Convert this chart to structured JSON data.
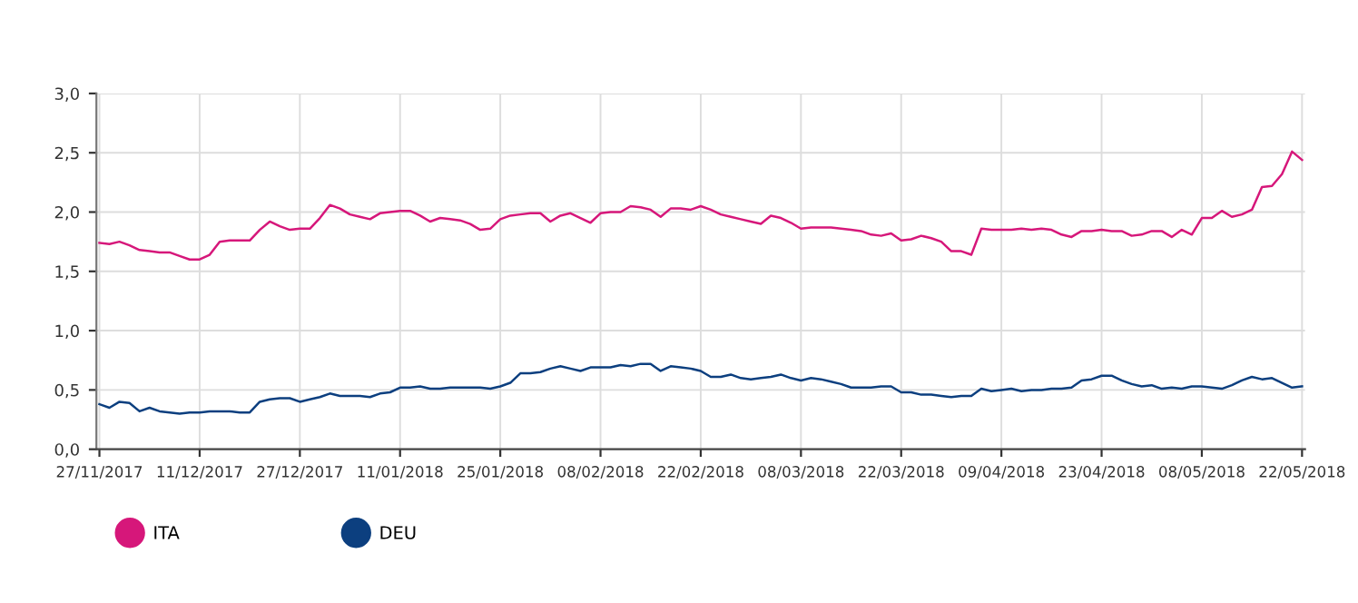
{
  "chart_data": {
    "type": "line",
    "categories": [
      "27/11/2017",
      null,
      null,
      null,
      null,
      null,
      null,
      null,
      null,
      null,
      "11/12/2017",
      null,
      null,
      null,
      null,
      null,
      null,
      null,
      null,
      null,
      "27/12/2017",
      null,
      null,
      null,
      null,
      null,
      null,
      null,
      null,
      null,
      "11/01/2018",
      null,
      null,
      null,
      null,
      null,
      null,
      null,
      null,
      null,
      "25/01/2018",
      null,
      null,
      null,
      null,
      null,
      null,
      null,
      null,
      null,
      "08/02/2018",
      null,
      null,
      null,
      null,
      null,
      null,
      null,
      null,
      null,
      "22/02/2018",
      null,
      null,
      null,
      null,
      null,
      null,
      null,
      null,
      null,
      "08/03/2018",
      null,
      null,
      null,
      null,
      null,
      null,
      null,
      null,
      null,
      "22/03/2018",
      null,
      null,
      null,
      null,
      null,
      null,
      null,
      null,
      null,
      "09/04/2018",
      null,
      null,
      null,
      null,
      null,
      null,
      null,
      null,
      null,
      "23/04/2018",
      null,
      null,
      null,
      null,
      null,
      null,
      null,
      null,
      null,
      "08/05/2018",
      null,
      null,
      null,
      null,
      null,
      null,
      null,
      null,
      null,
      "22/05/2018"
    ],
    "series": [
      {
        "name": "ITA",
        "color": "#d6177a",
        "values": [
          1.74,
          1.73,
          1.75,
          1.72,
          1.68,
          1.67,
          1.66,
          1.66,
          1.63,
          1.6,
          1.6,
          1.64,
          1.75,
          1.76,
          1.76,
          1.76,
          1.85,
          1.92,
          1.88,
          1.85,
          1.86,
          1.86,
          1.95,
          2.06,
          2.03,
          1.98,
          1.96,
          1.94,
          1.99,
          2.0,
          2.01,
          2.01,
          1.97,
          1.92,
          1.95,
          1.94,
          1.93,
          1.9,
          1.85,
          1.86,
          1.94,
          1.97,
          1.98,
          1.99,
          1.99,
          1.92,
          1.97,
          1.99,
          1.95,
          1.91,
          1.99,
          2.0,
          2.0,
          2.05,
          2.04,
          2.02,
          1.96,
          2.03,
          2.03,
          2.02,
          2.05,
          2.02,
          1.98,
          1.96,
          1.94,
          1.92,
          1.9,
          1.97,
          1.95,
          1.91,
          1.86,
          1.87,
          1.87,
          1.87,
          1.86,
          1.85,
          1.84,
          1.81,
          1.8,
          1.82,
          1.76,
          1.77,
          1.8,
          1.78,
          1.75,
          1.67,
          1.67,
          1.64,
          1.86,
          1.85,
          1.85,
          1.85,
          1.86,
          1.85,
          1.86,
          1.85,
          1.81,
          1.79,
          1.84,
          1.84,
          1.85,
          1.84,
          1.84,
          1.8,
          1.81,
          1.84,
          1.84,
          1.79,
          1.85,
          1.81,
          1.95,
          1.95,
          2.01,
          1.96,
          1.98,
          2.02,
          2.21,
          2.22,
          2.32,
          2.51,
          2.44
        ]
      },
      {
        "name": "DEU",
        "color": "#0c3f7f",
        "values": [
          0.38,
          0.35,
          0.4,
          0.39,
          0.32,
          0.35,
          0.32,
          0.31,
          0.3,
          0.31,
          0.31,
          0.32,
          0.32,
          0.32,
          0.31,
          0.31,
          0.4,
          0.42,
          0.43,
          0.43,
          0.4,
          0.42,
          0.44,
          0.47,
          0.45,
          0.45,
          0.45,
          0.44,
          0.47,
          0.48,
          0.52,
          0.52,
          0.53,
          0.51,
          0.51,
          0.52,
          0.52,
          0.52,
          0.52,
          0.51,
          0.53,
          0.56,
          0.64,
          0.64,
          0.65,
          0.68,
          0.7,
          0.68,
          0.66,
          0.69,
          0.69,
          0.69,
          0.71,
          0.7,
          0.72,
          0.72,
          0.66,
          0.7,
          0.69,
          0.68,
          0.66,
          0.61,
          0.61,
          0.63,
          0.6,
          0.59,
          0.6,
          0.61,
          0.63,
          0.6,
          0.58,
          0.6,
          0.59,
          0.57,
          0.55,
          0.52,
          0.52,
          0.52,
          0.53,
          0.53,
          0.48,
          0.48,
          0.46,
          0.46,
          0.45,
          0.44,
          0.45,
          0.45,
          0.51,
          0.49,
          0.5,
          0.51,
          0.49,
          0.5,
          0.5,
          0.51,
          0.51,
          0.52,
          0.58,
          0.59,
          0.62,
          0.62,
          0.58,
          0.55,
          0.53,
          0.54,
          0.51,
          0.52,
          0.51,
          0.53,
          0.53,
          0.52,
          0.51,
          0.54,
          0.58,
          0.61,
          0.59,
          0.6,
          0.56,
          0.52,
          0.53
        ]
      }
    ],
    "ylim": [
      0,
      3
    ],
    "yticks": [
      {
        "value": 0,
        "label": "0,0"
      },
      {
        "value": 0.5,
        "label": "0,5"
      },
      {
        "value": 1,
        "label": "1,0"
      },
      {
        "value": 1.5,
        "label": "1,5"
      },
      {
        "value": 2,
        "label": "2,0"
      },
      {
        "value": 2.5,
        "label": "2,5"
      },
      {
        "value": 3,
        "label": "3,0"
      }
    ],
    "grid": true,
    "legend": "bottom left",
    "marker": "none",
    "line_style": "solid"
  }
}
